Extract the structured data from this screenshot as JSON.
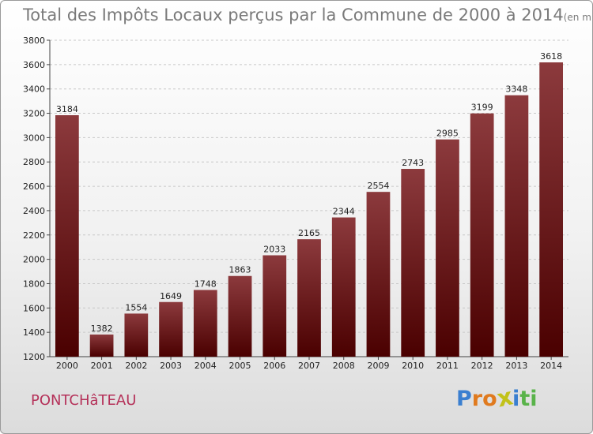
{
  "header": {
    "title": "Total des Impôts Locaux perçus par la Commune de 2000 à 2014",
    "unit_note": "(en milliers d'€)"
  },
  "footer": {
    "commune": "PONTCHâTEAU",
    "logo_letters": [
      "P",
      "r",
      "o",
      "x",
      "i",
      "t",
      "i"
    ]
  },
  "colors": {
    "bar_top": "#8c3a3d",
    "bar_bottom": "#4a0000",
    "commune_text": "#b5325a",
    "logo": [
      "#3a7fd0",
      "#e07a1e",
      "#e07a1e",
      "#c2c21a",
      "#3a7fd0",
      "#59b34a",
      "#59b34a"
    ]
  },
  "chart_data": {
    "type": "bar",
    "title": "Total des Impôts Locaux perçus par la Commune de 2000 à 2014",
    "xlabel": "",
    "ylabel": "",
    "ylim": [
      1200,
      3800
    ],
    "yticks": [
      1200,
      1400,
      1600,
      1800,
      2000,
      2200,
      2400,
      2600,
      2800,
      3000,
      3200,
      3400,
      3600,
      3800
    ],
    "grid": true,
    "categories": [
      "2000",
      "2001",
      "2002",
      "2003",
      "2004",
      "2005",
      "2006",
      "2007",
      "2008",
      "2009",
      "2010",
      "2011",
      "2012",
      "2013",
      "2014"
    ],
    "values": [
      3184,
      1382,
      1554,
      1649,
      1748,
      1863,
      2033,
      2165,
      2344,
      2554,
      2743,
      2985,
      3199,
      3348,
      3618
    ]
  }
}
